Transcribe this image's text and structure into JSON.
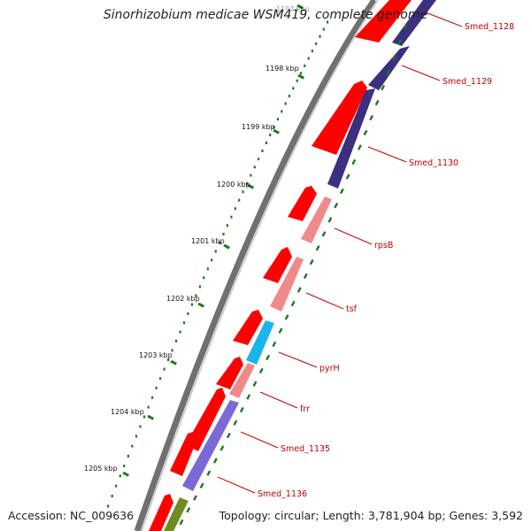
{
  "title": "Sinorhizobium medicae WSM419, complete genome",
  "accession": "Accession: NC_009636",
  "summary": "Topology: circular; Length: 3,781,904 bp; Genes: 3,592",
  "ruler": {
    "tick_labels": [
      "1197 kbp",
      "1198 kbp",
      "1199 kbp",
      "1200 kbp",
      "1201 kbp",
      "1202 kbp",
      "1203 kbp",
      "1204 kbp",
      "1205 kbp"
    ]
  },
  "genes": [
    {
      "name": "Smed_1128"
    },
    {
      "name": "Smed_1129"
    },
    {
      "name": "Smed_1130"
    },
    {
      "name": "rpsB"
    },
    {
      "name": "tsf"
    },
    {
      "name": "pyrH"
    },
    {
      "name": "frr"
    },
    {
      "name": "Smed_1135"
    },
    {
      "name": "Smed_1136"
    }
  ],
  "colors": {
    "cds": "#ff0000",
    "gene_dark": "#3d2f80",
    "gene_pink": "#ef8a8a",
    "gene_cyan": "#1ab4ee",
    "gene_violet": "#7b69d6",
    "gene_olive": "#6f8b22",
    "tick": "#1a7a1a",
    "label": "#c00000",
    "leader": "#cc0000"
  }
}
